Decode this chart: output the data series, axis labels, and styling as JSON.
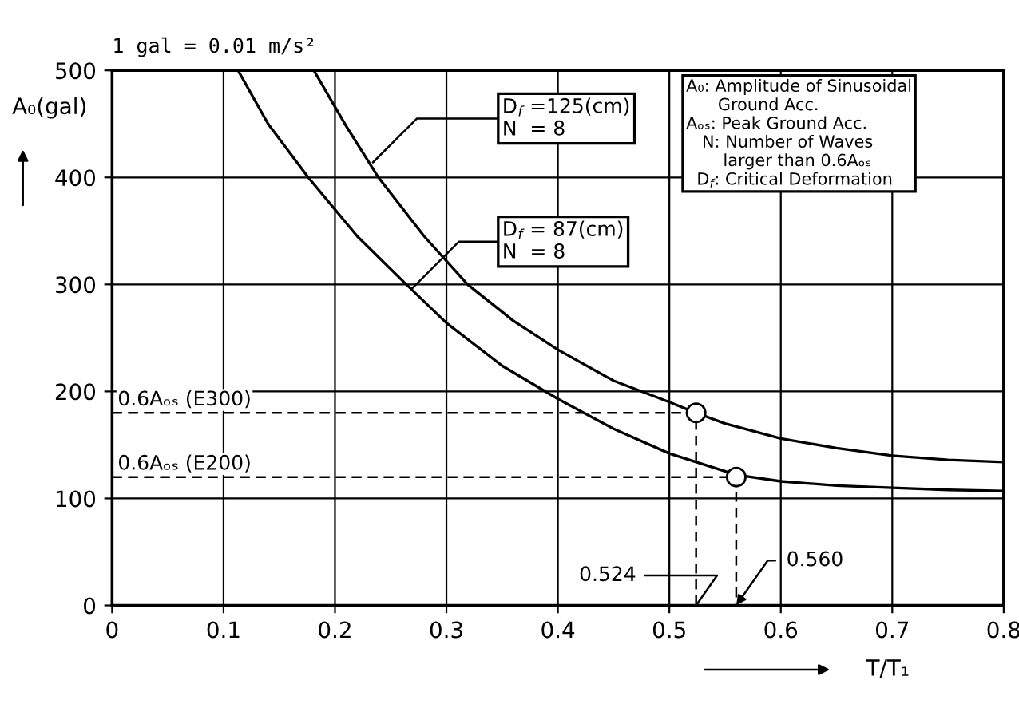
{
  "chart_data": {
    "type": "line",
    "title": "1 gal = 0.01 m/s²",
    "xlabel": "T/T₁",
    "ylabel": "A₀(gal)",
    "xlim": [
      0,
      0.8
    ],
    "ylim": [
      0,
      500
    ],
    "xticks": [
      0,
      0.1,
      0.2,
      0.3,
      0.4,
      0.5,
      0.6,
      0.7,
      0.8
    ],
    "yticks": [
      0,
      100,
      200,
      300,
      400,
      500
    ],
    "grid": true,
    "legend": false,
    "line_style": "solid",
    "marker": "none",
    "series": [
      {
        "color": "#000000",
        "x": [
          0.181,
          0.21,
          0.239,
          0.28,
          0.319,
          0.36,
          0.4,
          0.45,
          0.5,
          0.524,
          0.55,
          0.6,
          0.65,
          0.7,
          0.75,
          0.8
        ],
        "values": [
          500,
          448,
          400,
          345,
          300,
          266,
          239,
          210,
          190,
          180,
          170,
          156,
          147,
          140,
          136,
          134
        ]
      },
      {
        "color": "#000000",
        "x": [
          0.113,
          0.14,
          0.176,
          0.22,
          0.264,
          0.3,
          0.35,
          0.4,
          0.45,
          0.5,
          0.56,
          0.6,
          0.65,
          0.7,
          0.75,
          0.8
        ],
        "values": [
          500,
          450,
          400,
          345,
          300,
          264,
          224,
          193,
          165,
          142,
          122,
          116,
          112,
          110,
          108,
          107
        ]
      },
      {
        "type": "scatter",
        "marker": "circle",
        "color": "#000000",
        "x": [
          0.524,
          0.56
        ],
        "values": [
          180,
          120
        ]
      },
      {
        "color": "#000000",
        "line_style": "dashed",
        "x": [
          0,
          0.524,
          0.524
        ],
        "values": [
          180,
          180,
          0
        ]
      },
      {
        "color": "#000000",
        "line_style": "dashed",
        "x": [
          0,
          0.56,
          0.56
        ],
        "values": [
          120,
          120,
          0
        ]
      }
    ],
    "annotations": [
      {
        "text": "D$_{f}$ =125(cm)\nN  = 8",
        "x": 0.234,
        "y": 414
      },
      {
        "text": "D$_{f}$ = 87(cm)\nN  = 8",
        "x": 0.269,
        "y": 296
      },
      "0.6Aₒₛ (E300)",
      "0.6Aₒₛ (E200)",
      {
        "text": "0.524",
        "x": 0.524,
        "y": 0
      },
      {
        "text": "0.560",
        "x": 0.56,
        "y": 0
      },
      "A₀: Amplitude of Sinusoidal\n      Ground Acc.\nAₒₛ: Peak Ground Acc.\n   N: Number of Waves\n       larger than 0.6Aₒₛ\n  D$_{f}$: Critical Deformation"
    ]
  }
}
